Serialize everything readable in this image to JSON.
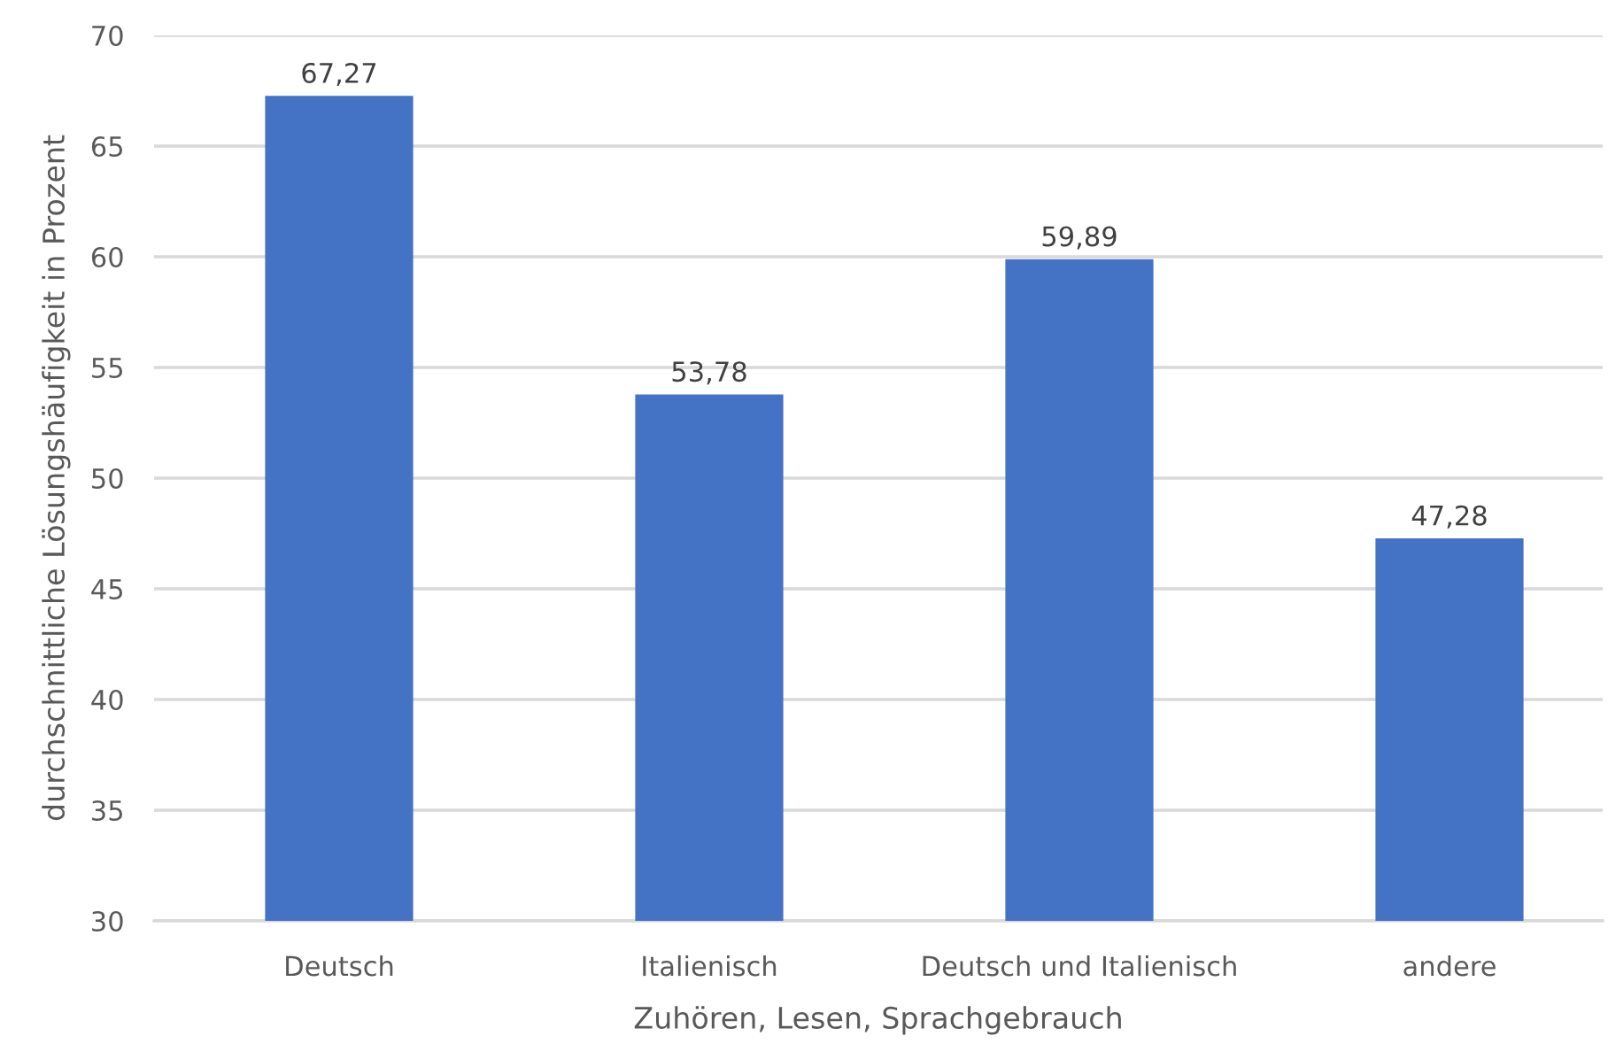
{
  "chart_data": {
    "type": "bar",
    "xlabel": "Zuhören, Lesen, Sprachgebrauch",
    "ylabel": "durchschnittliche Lösungshäufigkeit in Prozent",
    "categories": [
      "Deutsch",
      "Italienisch",
      "Deutsch und Italienisch",
      "andere"
    ],
    "values": [
      67.27,
      53.78,
      59.89,
      47.28
    ],
    "color": "#4472c4",
    "value_labels": [
      "67,27",
      "53,78",
      "59,89",
      "47,28"
    ],
    "ylim": [
      30,
      70
    ],
    "yticks": [
      30,
      35,
      40,
      45,
      50,
      55,
      60,
      65,
      70
    ],
    "grid": "y"
  }
}
